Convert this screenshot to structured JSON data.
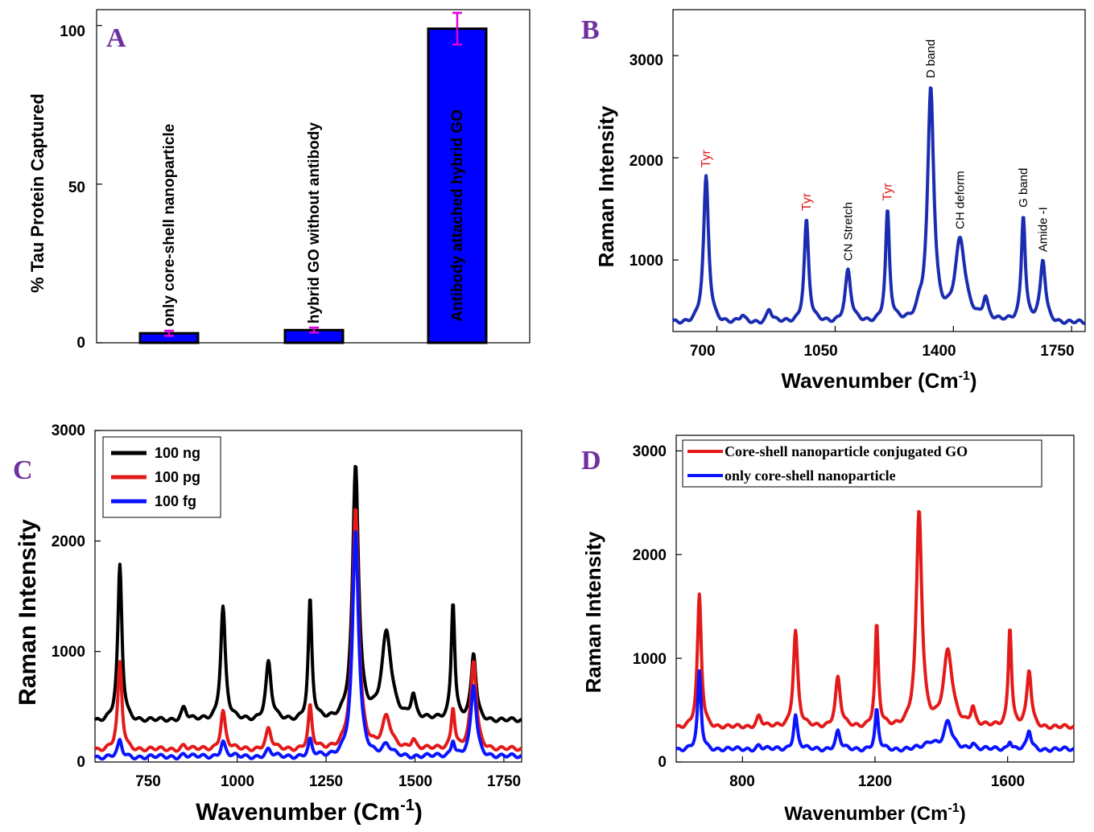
{
  "chart_data": [
    {
      "panel": "A",
      "type": "bar",
      "ylabel": "% Tau Protein Captured",
      "ylim": [
        0,
        105
      ],
      "yticks": [
        0,
        50,
        100
      ],
      "bar_color": "#0000ff",
      "error_color": "#e000e0",
      "categories": [
        "only core-shell nanoparticle",
        "hybrid GO without antibody",
        "Antibody attached hybrid GO"
      ],
      "values": [
        3,
        4,
        99
      ],
      "errors": [
        0.8,
        0.8,
        5
      ]
    },
    {
      "panel": "B",
      "type": "line",
      "xlabel": "Wavenumber (Cm",
      "xlabel_sup": "-1",
      "ylabel": "Raman Intensity",
      "xlim": [
        570,
        1790
      ],
      "ylim": [
        300,
        3450
      ],
      "xticks": [
        700,
        1050,
        1400,
        1750
      ],
      "yticks": [
        1000,
        2000,
        3000
      ],
      "series": [
        {
          "color": "#1a2db0",
          "baseline": 380,
          "peaks": [
            [
              668,
              1420,
              9
            ],
            [
              775,
              60,
              8
            ],
            [
              855,
              130,
              9
            ],
            [
              965,
              1000,
              8
            ],
            [
              1088,
              500,
              10
            ],
            [
              1205,
              1070,
              7
            ],
            [
              1300,
              80,
              10
            ],
            [
              1333,
              2270,
              11
            ],
            [
              1420,
              790,
              18
            ],
            [
              1495,
              220,
              9
            ],
            [
              1607,
              1050,
              7
            ],
            [
              1665,
              600,
              9
            ]
          ]
        }
      ],
      "annotations": [
        {
          "text": "Tyr",
          "x": 668,
          "color": "#e41a1a"
        },
        {
          "text": "Tyr",
          "x": 965,
          "color": "#e41a1a"
        },
        {
          "text": "CN Stretch",
          "x": 1088,
          "color": "#000000"
        },
        {
          "text": "Tyr",
          "x": 1205,
          "color": "#e41a1a"
        },
        {
          "text": "D band",
          "x": 1333,
          "color": "#000000"
        },
        {
          "text": "CH deform",
          "x": 1420,
          "color": "#000000"
        },
        {
          "text": "G band",
          "x": 1607,
          "color": "#000000"
        },
        {
          "text": "Amide -I",
          "x": 1665,
          "color": "#000000"
        }
      ]
    },
    {
      "panel": "C",
      "type": "line",
      "xlabel": "Wavenumber (Cm",
      "xlabel_sup": "-1",
      "ylabel": "Raman Intensity",
      "xlim": [
        600,
        1800
      ],
      "ylim": [
        0,
        3000
      ],
      "xticks": [
        750,
        1000,
        1250,
        1500,
        1750
      ],
      "yticks": [
        0,
        1000,
        2000,
        3000
      ],
      "series": [
        {
          "name": "100 ng",
          "color": "#000000",
          "baseline": 370,
          "peaks": [
            [
              670,
              1400,
              7
            ],
            [
              850,
              120,
              9
            ],
            [
              960,
              1030,
              8
            ],
            [
              1088,
              520,
              9
            ],
            [
              1205,
              1080,
              6
            ],
            [
              1333,
              2290,
              10
            ],
            [
              1420,
              780,
              16
            ],
            [
              1495,
              220,
              8
            ],
            [
              1607,
              1080,
              6
            ],
            [
              1665,
              600,
              8
            ]
          ]
        },
        {
          "name": "100 pg",
          "color": "#e41a1a",
          "baseline": 110,
          "peaks": [
            [
              670,
              780,
              7
            ],
            [
              850,
              40,
              9
            ],
            [
              960,
              350,
              8
            ],
            [
              1088,
              180,
              9
            ],
            [
              1205,
              380,
              6
            ],
            [
              1333,
              2180,
              10
            ],
            [
              1420,
              280,
              14
            ],
            [
              1495,
              90,
              8
            ],
            [
              1607,
              380,
              6
            ],
            [
              1665,
              800,
              9
            ]
          ]
        },
        {
          "name": "100 fg",
          "color": "#0a14ff",
          "baseline": 45,
          "peaks": [
            [
              670,
              140,
              7
            ],
            [
              850,
              25,
              9
            ],
            [
              960,
              140,
              8
            ],
            [
              1088,
              60,
              9
            ],
            [
              1205,
              140,
              6
            ],
            [
              1333,
              2050,
              10
            ],
            [
              1420,
              90,
              14
            ],
            [
              1607,
              150,
              6
            ],
            [
              1665,
              650,
              9
            ]
          ]
        }
      ]
    },
    {
      "panel": "D",
      "type": "line",
      "xlabel": "Wavenumber (Cm",
      "xlabel_sup": "-1",
      "ylabel": "Raman Intensity",
      "xlim": [
        600,
        1800
      ],
      "ylim": [
        0,
        3150
      ],
      "xticks": [
        800,
        1200,
        1600
      ],
      "yticks": [
        0,
        1000,
        2000,
        3000
      ],
      "series": [
        {
          "name": "Core-shell nanoparticle conjugated GO",
          "color": "#e41a1a",
          "baseline": 330,
          "peaks": [
            [
              670,
              1270,
              7
            ],
            [
              850,
              110,
              9
            ],
            [
              960,
              930,
              8
            ],
            [
              1088,
              470,
              9
            ],
            [
              1205,
              970,
              6
            ],
            [
              1333,
              2070,
              10
            ],
            [
              1420,
              720,
              16
            ],
            [
              1495,
              180,
              8
            ],
            [
              1607,
              970,
              6
            ],
            [
              1665,
              540,
              8
            ]
          ]
        },
        {
          "name": "only core-shell nanoparticle",
          "color": "#0a14ff",
          "baseline": 120,
          "peaks": [
            [
              670,
              740,
              6
            ],
            [
              850,
              40,
              9
            ],
            [
              960,
              330,
              7
            ],
            [
              1088,
              170,
              8
            ],
            [
              1205,
              370,
              6
            ],
            [
              1370,
              70,
              20
            ],
            [
              1420,
              260,
              14
            ],
            [
              1495,
              60,
              8
            ],
            [
              1607,
              90,
              6
            ],
            [
              1665,
              180,
              7
            ]
          ]
        }
      ]
    }
  ],
  "panel_letters": [
    "A",
    "B",
    "C",
    "D"
  ],
  "tick_text": {
    "a_y": [
      "0",
      "50",
      "100"
    ],
    "b_x": [
      "700",
      "1050",
      "1400",
      "1750"
    ],
    "b_y": [
      "1000",
      "2000",
      "3000"
    ],
    "c_x": [
      "750",
      "1000",
      "1250",
      "1500",
      "1750"
    ],
    "c_y": [
      "0",
      "1000",
      "2000",
      "3000"
    ],
    "d_x": [
      "800",
      "1200",
      "1600"
    ],
    "d_y": [
      "0",
      "1000",
      "2000",
      "3000"
    ]
  }
}
